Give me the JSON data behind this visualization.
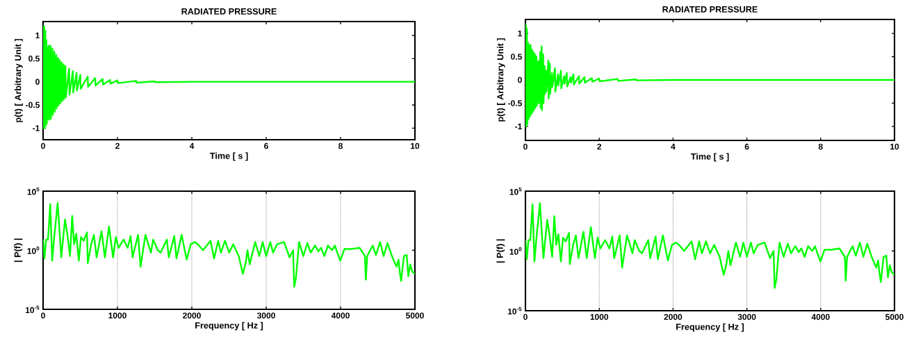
{
  "chart_data": [
    {
      "type": "line",
      "title": "RADIATED PRESSURE",
      "xlabel": "Time [ s ]",
      "ylabel": "p(t) [ Arbitrary Unit ]",
      "color": "#00ff00",
      "x": [
        0,
        0.01,
        0.02,
        0.03,
        0.04,
        0.06,
        0.07,
        0.09,
        0.1,
        0.12,
        0.13,
        0.15,
        0.16,
        0.2,
        0.21,
        0.25,
        0.26,
        0.3,
        0.31,
        0.35,
        0.36,
        0.4,
        0.41,
        0.45,
        0.46,
        0.5,
        0.51,
        0.55,
        0.56,
        0.6,
        0.61,
        0.7,
        0.71,
        0.8,
        0.81,
        0.9,
        0.91,
        1.0,
        1.01,
        1.2,
        1.21,
        1.4,
        1.41,
        1.6,
        1.61,
        1.8,
        1.81,
        2.0,
        2.01,
        2.5,
        2.51,
        3,
        3.01,
        4,
        10
      ],
      "values": [
        0,
        1.2,
        -1.0,
        1.2,
        -1.0,
        1.1,
        -0.95,
        0.9,
        -0.9,
        0.75,
        -0.8,
        0.78,
        -0.82,
        0.78,
        -0.8,
        0.72,
        -0.72,
        0.65,
        -0.65,
        0.58,
        -0.58,
        0.52,
        -0.52,
        0.47,
        -0.47,
        0.42,
        -0.42,
        0.38,
        -0.38,
        0.34,
        -0.34,
        0.28,
        -0.28,
        0.23,
        -0.23,
        0.19,
        -0.19,
        0.15,
        -0.15,
        0.11,
        -0.11,
        0.08,
        -0.08,
        0.06,
        -0.06,
        0.04,
        -0.04,
        0.03,
        -0.03,
        0.02,
        -0.02,
        0.01,
        -0.01,
        0,
        0
      ],
      "xlim": [
        0,
        10
      ],
      "ylim": [
        -1.25,
        1.3
      ],
      "xticks": [
        0,
        2,
        4,
        6,
        8,
        10
      ],
      "yticks": [
        -1,
        -0.5,
        0,
        0.5,
        1
      ]
    },
    {
      "type": "line",
      "xlabel": "Frequency [ Hz ]",
      "ylabel": "| P(f) |",
      "color": "#00ff00",
      "log": "y",
      "grid": "x",
      "x": [
        0,
        18,
        41,
        66,
        96,
        122,
        151,
        196,
        244,
        295,
        325,
        362,
        391,
        417,
        446,
        480,
        509,
        546,
        590,
        601,
        646,
        683,
        719,
        786,
        830,
        886,
        941,
        978,
        1015,
        1081,
        1137,
        1177,
        1203,
        1277,
        1310,
        1376,
        1450,
        1480,
        1542,
        1579,
        1664,
        1690,
        1764,
        1793,
        1863,
        1930,
        1985,
        2041,
        2096,
        2151,
        2251,
        2299,
        2354,
        2391,
        2446,
        2502,
        2557,
        2631,
        2686,
        2723,
        2749,
        2778,
        2852,
        2908,
        2952,
        3000,
        3055,
        3092,
        3147,
        3240,
        3314,
        3362,
        3376,
        3399,
        3443,
        3499,
        3554,
        3598,
        3657,
        3701,
        3738,
        3782,
        3830,
        3886,
        3923,
        3996,
        4052,
        4144,
        4255,
        4328,
        4339,
        4358,
        4432,
        4476,
        4531,
        4579,
        4631,
        4697,
        4753,
        4779,
        4797,
        4815,
        4852,
        4889,
        4911,
        4937,
        4963,
        5000
      ],
      "values": [
        8,
        0.2,
        8,
        8,
        8000,
        0.13,
        16,
        10000,
        0.25,
        400,
        25,
        0.32,
        800,
        3.2,
        25,
        0.13,
        13,
        6.3,
        32,
        0.08,
        3.2,
        20,
        0.25,
        40,
        0.25,
        100,
        0.25,
        13,
        1.6,
        8,
        1.6,
        16,
        0.25,
        20,
        0.04,
        20,
        0.63,
        8,
        1,
        0.63,
        8,
        0.25,
        16,
        0.2,
        20,
        0.16,
        3.2,
        5,
        2.5,
        1,
        6.3,
        0.2,
        6.3,
        0.63,
        6.3,
        0.63,
        3.2,
        0.32,
        0.01,
        0.08,
        1,
        0.063,
        5,
        0.32,
        5,
        0.32,
        5,
        0.63,
        3.2,
        5,
        0.25,
        1,
        0.0008,
        0.004,
        5,
        0.32,
        4,
        0.63,
        2.5,
        0.8,
        1.6,
        0.32,
        2.5,
        1,
        2.5,
        0.13,
        1.26,
        1.26,
        1.6,
        0.32,
        0.0032,
        0.32,
        2.5,
        0.4,
        5,
        0.32,
        4,
        0.25,
        0.04,
        0.16,
        0.013,
        0.0025,
        0.32,
        0.4,
        0.0063,
        0.063,
        0.016,
        0.01
      ],
      "xlim": [
        0,
        5000
      ],
      "ylim": [
        1e-05,
        100000
      ],
      "xticks": [
        0,
        1000,
        2000,
        3000,
        4000,
        5000
      ],
      "yticks": [
        {
          "value": 1e-05,
          "label": "10$^{-5}$"
        },
        {
          "value": 1,
          "label": "10$^{0}$"
        },
        {
          "value": 100000,
          "label": "10$^{5}$"
        }
      ]
    },
    {
      "type": "line",
      "title": "RADIATED PRESSURE",
      "xlabel": "Time [ s ]",
      "ylabel": "p(t) [ Arbitrary Unit ]",
      "color": "#00ff00",
      "x": [
        0,
        0.01,
        0.02,
        0.04,
        0.05,
        0.07,
        0.08,
        0.1,
        0.11,
        0.14,
        0.15,
        0.18,
        0.19,
        0.22,
        0.23,
        0.26,
        0.27,
        0.3,
        0.31,
        0.35,
        0.36,
        0.4,
        0.41,
        0.44,
        0.45,
        0.48,
        0.49,
        0.52,
        0.53,
        0.56,
        0.57,
        0.62,
        0.63,
        0.66,
        0.67,
        0.72,
        0.73,
        0.8,
        0.81,
        0.88,
        0.89,
        0.96,
        0.97,
        1.05,
        1.06,
        1.12,
        1.13,
        1.22,
        1.23,
        1.3,
        1.31,
        1.45,
        1.46,
        1.6,
        1.61,
        1.8,
        1.81,
        2.0,
        2.01,
        2.5,
        2.51,
        3,
        3.01,
        4,
        10
      ],
      "values": [
        0,
        1.2,
        -1.0,
        1.1,
        -0.95,
        0.8,
        -0.85,
        0.75,
        -0.8,
        0.75,
        -0.75,
        0.65,
        -0.7,
        0.6,
        -0.65,
        0.55,
        -0.6,
        0.5,
        -0.55,
        0.4,
        -0.5,
        0.6,
        -0.6,
        0.72,
        -0.65,
        0.55,
        -0.5,
        0.3,
        -0.3,
        0.2,
        -0.25,
        0.42,
        -0.4,
        0.35,
        -0.3,
        0.15,
        -0.15,
        0.25,
        -0.25,
        0.12,
        -0.12,
        0.2,
        -0.18,
        0.08,
        -0.08,
        0.15,
        -0.14,
        0.06,
        -0.06,
        0.12,
        -0.1,
        0.08,
        -0.08,
        0.06,
        -0.06,
        0.04,
        -0.04,
        0.03,
        -0.03,
        0.02,
        -0.02,
        0.01,
        -0.01,
        0,
        0
      ],
      "xlim": [
        0,
        10
      ],
      "ylim": [
        -1.3,
        1.3
      ],
      "xticks": [
        0,
        2,
        4,
        6,
        8,
        10
      ],
      "yticks": [
        -1,
        -0.5,
        0,
        0.5,
        1
      ]
    },
    {
      "type": "line",
      "xlabel": "Frequency [ Hz ]",
      "ylabel": "| P(f) |",
      "color": "#00ff00",
      "log": "y",
      "grid": "x",
      "x": [
        0,
        18,
        41,
        66,
        96,
        122,
        151,
        196,
        244,
        295,
        325,
        362,
        391,
        417,
        446,
        480,
        509,
        546,
        590,
        601,
        646,
        683,
        719,
        786,
        830,
        886,
        941,
        978,
        1015,
        1081,
        1137,
        1177,
        1203,
        1277,
        1310,
        1376,
        1450,
        1480,
        1542,
        1579,
        1664,
        1690,
        1764,
        1793,
        1863,
        1930,
        1985,
        2041,
        2096,
        2151,
        2251,
        2299,
        2354,
        2391,
        2446,
        2502,
        2557,
        2631,
        2686,
        2723,
        2749,
        2778,
        2852,
        2908,
        2952,
        3000,
        3055,
        3092,
        3147,
        3240,
        3314,
        3362,
        3376,
        3399,
        3443,
        3499,
        3554,
        3598,
        3657,
        3701,
        3738,
        3782,
        3830,
        3886,
        3923,
        3996,
        4052,
        4144,
        4255,
        4328,
        4339,
        4358,
        4432,
        4476,
        4531,
        4579,
        4631,
        4697,
        4753,
        4779,
        4797,
        4815,
        4852,
        4889,
        4911,
        4937,
        4963,
        5000
      ],
      "values": [
        8,
        0.2,
        8,
        8,
        8000,
        0.13,
        16,
        10000,
        0.25,
        400,
        25,
        0.32,
        800,
        3.2,
        25,
        0.13,
        13,
        6.3,
        32,
        0.08,
        3.2,
        20,
        0.25,
        40,
        0.25,
        100,
        0.25,
        13,
        1.6,
        8,
        1.6,
        16,
        0.25,
        20,
        0.04,
        20,
        0.63,
        8,
        1,
        0.63,
        8,
        0.25,
        16,
        0.2,
        20,
        0.16,
        3.2,
        5,
        2.5,
        1,
        6.3,
        0.2,
        6.3,
        0.63,
        6.3,
        0.63,
        3.2,
        0.32,
        0.01,
        0.08,
        1,
        0.063,
        5,
        0.32,
        5,
        0.32,
        5,
        0.63,
        3.2,
        5,
        0.25,
        1,
        0.0008,
        0.004,
        5,
        0.32,
        4,
        0.63,
        2.5,
        0.8,
        1.6,
        0.32,
        2.5,
        1,
        2.5,
        0.13,
        1.26,
        1.26,
        1.6,
        0.32,
        0.0032,
        0.32,
        2.5,
        0.4,
        5,
        0.32,
        4,
        0.25,
        0.04,
        0.16,
        0.013,
        0.0025,
        0.32,
        0.4,
        0.0063,
        0.063,
        0.016,
        0.01
      ],
      "xlim": [
        0,
        5000
      ],
      "ylim": [
        1e-05,
        100000
      ],
      "xticks": [
        0,
        1000,
        2000,
        3000,
        4000,
        5000
      ],
      "yticks": [
        {
          "value": 1e-05,
          "label": "10$^{-5}$"
        },
        {
          "value": 1,
          "label": "10$^{0}$"
        },
        {
          "value": 100000,
          "label": "10$^{5}$"
        }
      ]
    }
  ]
}
